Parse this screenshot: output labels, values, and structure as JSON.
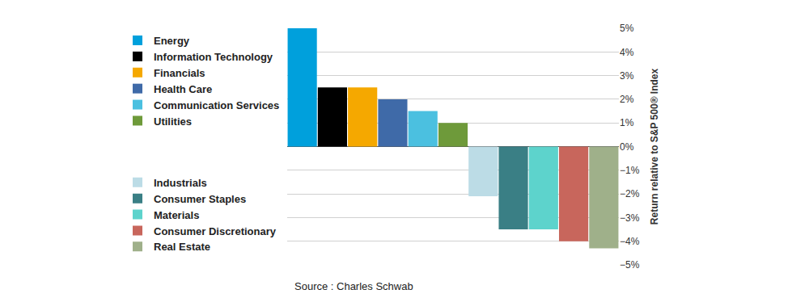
{
  "chart_data": {
    "type": "bar",
    "categories": [
      "Energy",
      "Information Technology",
      "Financials",
      "Health Care",
      "Communication Services",
      "Utilities",
      "Industrials",
      "Consumer Staples",
      "Materials",
      "Consumer Discretionary",
      "Real Estate"
    ],
    "values": [
      5,
      2.5,
      2.5,
      2,
      1.5,
      1,
      -2.1,
      -3.5,
      -3.5,
      -4,
      -4.3
    ],
    "colors": [
      "#00a0dc",
      "#000000",
      "#f5a800",
      "#3f6aa8",
      "#4bc0e0",
      "#6e9a3a",
      "#bcdce6",
      "#3a7f85",
      "#5dd3cc",
      "#c8665c",
      "#9fb08a"
    ],
    "y_label": "Return relative to S&P 500® Index",
    "annotations": [
      "Source : Charles Schwab"
    ],
    "ylim": [
      -5,
      5
    ],
    "yticks": [
      {
        "value": 5,
        "label": "5%"
      },
      {
        "value": 4,
        "label": "4%"
      },
      {
        "value": 3,
        "label": "3%"
      },
      {
        "value": 2,
        "label": "2%"
      },
      {
        "value": 1,
        "label": "1%"
      },
      {
        "value": 0,
        "label": "0%"
      },
      {
        "value": -1,
        "label": "−1%"
      },
      {
        "value": -2,
        "label": "−2%"
      },
      {
        "value": -3,
        "label": "−3%"
      },
      {
        "value": -4,
        "label": "−4%"
      },
      {
        "value": -5,
        "label": "−5%"
      }
    ],
    "grid": true,
    "legend": "left",
    "tick_labels": "y"
  }
}
